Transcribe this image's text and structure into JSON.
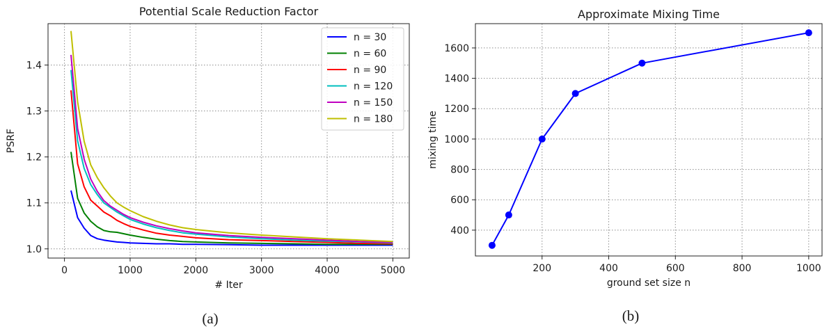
{
  "chart_data": [
    {
      "type": "line",
      "title": "Potential Scale Reduction Factor",
      "xlabel": "# Iter",
      "ylabel": "PSRF",
      "xlim": [
        -250,
        5250
      ],
      "ylim": [
        0.98,
        1.49
      ],
      "xticks": [
        0,
        1000,
        2000,
        3000,
        4000,
        5000
      ],
      "yticks": [
        1.0,
        1.1,
        1.2,
        1.3,
        1.4
      ],
      "ytick_labels": [
        "1.0",
        "1.1",
        "1.2",
        "1.3",
        "1.4"
      ],
      "grid": true,
      "legend": "top-right",
      "x": [
        100,
        200,
        300,
        400,
        500,
        600,
        700,
        800,
        900,
        1000,
        1200,
        1400,
        1600,
        1800,
        2000,
        2500,
        3000,
        3500,
        4000,
        4500,
        5000
      ],
      "series": [
        {
          "name": "n = 30",
          "color": "#0000ff",
          "values": [
            1.127,
            1.068,
            1.045,
            1.029,
            1.022,
            1.019,
            1.017,
            1.015,
            1.014,
            1.013,
            1.012,
            1.011,
            1.011,
            1.01,
            1.01,
            1.009,
            1.008,
            1.008,
            1.008,
            1.008,
            1.008
          ]
        },
        {
          "name": "n = 60",
          "color": "#008000",
          "values": [
            1.211,
            1.11,
            1.078,
            1.06,
            1.048,
            1.04,
            1.037,
            1.036,
            1.033,
            1.03,
            1.025,
            1.021,
            1.018,
            1.016,
            1.015,
            1.013,
            1.012,
            1.011,
            1.01,
            1.01,
            1.01
          ]
        },
        {
          "name": "n = 90",
          "color": "#ff0000",
          "values": [
            1.345,
            1.185,
            1.135,
            1.106,
            1.093,
            1.08,
            1.072,
            1.062,
            1.055,
            1.049,
            1.041,
            1.034,
            1.03,
            1.027,
            1.024,
            1.02,
            1.018,
            1.016,
            1.014,
            1.012,
            1.011
          ]
        },
        {
          "name": "n = 120",
          "color": "#00bfbf",
          "values": [
            1.389,
            1.235,
            1.175,
            1.14,
            1.118,
            1.1,
            1.09,
            1.08,
            1.072,
            1.064,
            1.054,
            1.046,
            1.04,
            1.035,
            1.032,
            1.026,
            1.022,
            1.019,
            1.017,
            1.015,
            1.013
          ]
        },
        {
          "name": "n = 150",
          "color": "#bf00bf",
          "values": [
            1.422,
            1.262,
            1.195,
            1.152,
            1.125,
            1.105,
            1.093,
            1.084,
            1.075,
            1.068,
            1.058,
            1.05,
            1.044,
            1.039,
            1.035,
            1.029,
            1.025,
            1.022,
            1.019,
            1.016,
            1.014
          ]
        },
        {
          "name": "n = 180",
          "color": "#bfbf00",
          "values": [
            1.474,
            1.32,
            1.234,
            1.183,
            1.155,
            1.133,
            1.115,
            1.1,
            1.091,
            1.083,
            1.07,
            1.06,
            1.052,
            1.046,
            1.042,
            1.035,
            1.03,
            1.026,
            1.022,
            1.019,
            1.016
          ]
        }
      ],
      "caption": "(a)"
    },
    {
      "type": "line",
      "title": "Approximate Mixing Time",
      "xlabel": "ground set size n",
      "ylabel": "mixing time",
      "xlim": [
        0,
        1040
      ],
      "ylim": [
        230,
        1760
      ],
      "xticks": [
        200,
        400,
        600,
        800,
        1000
      ],
      "yticks": [
        400,
        600,
        800,
        1000,
        1200,
        1400,
        1600
      ],
      "grid": true,
      "x": [
        50,
        100,
        200,
        300,
        500,
        1000
      ],
      "series": [
        {
          "name": "",
          "color": "#0000ff",
          "values": [
            300,
            500,
            1000,
            1300,
            1500,
            1700
          ]
        }
      ],
      "caption": "(b)"
    }
  ]
}
